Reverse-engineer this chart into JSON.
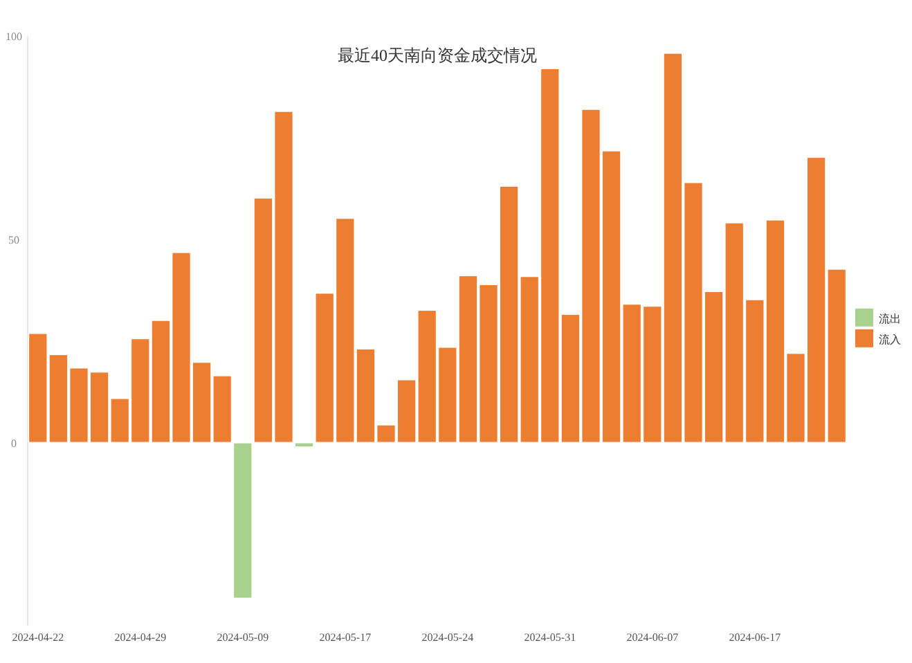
{
  "chart_data": {
    "type": "bar",
    "title": "最近40天南向资金成交情况",
    "categories": [
      "2024-04-22",
      null,
      null,
      null,
      null,
      "2024-04-29",
      null,
      null,
      null,
      null,
      "2024-05-09",
      null,
      null,
      null,
      null,
      "2024-05-17",
      null,
      null,
      null,
      null,
      "2024-05-24",
      null,
      null,
      null,
      null,
      "2024-05-31",
      null,
      null,
      null,
      null,
      "2024-06-07",
      null,
      null,
      null,
      null,
      "2024-06-17",
      null,
      null,
      null,
      null
    ],
    "series": [
      {
        "name": "流出",
        "color": "#a9d18e",
        "values": [
          null,
          null,
          null,
          null,
          null,
          null,
          null,
          null,
          null,
          null,
          -38.3,
          null,
          null,
          -1.1,
          null,
          null,
          null,
          null,
          null,
          null,
          null,
          null,
          null,
          null,
          null,
          null,
          null,
          null,
          null,
          null,
          null,
          null,
          null,
          null,
          null,
          null,
          null,
          null,
          null,
          null
        ]
      },
      {
        "name": "流入",
        "color": "#ed7d31",
        "values": [
          26.9,
          21.7,
          18.4,
          17.4,
          10.9,
          25.6,
          30.1,
          46.8,
          19.8,
          16.5,
          null,
          60.2,
          81.5,
          null,
          36.8,
          55.2,
          23.1,
          4.4,
          15.5,
          32.6,
          23.5,
          41.1,
          38.9,
          63.1,
          40.9,
          92.0,
          31.6,
          82.0,
          71.8,
          34.1,
          33.6,
          95.8,
          64.0,
          37.2,
          54.1,
          35.2,
          54.8,
          22.0,
          70.2,
          42.7
        ]
      }
    ],
    "ylim": [
      -45,
      100
    ],
    "yticks": [
      0,
      50,
      100
    ],
    "grid": false,
    "legend": "right"
  }
}
